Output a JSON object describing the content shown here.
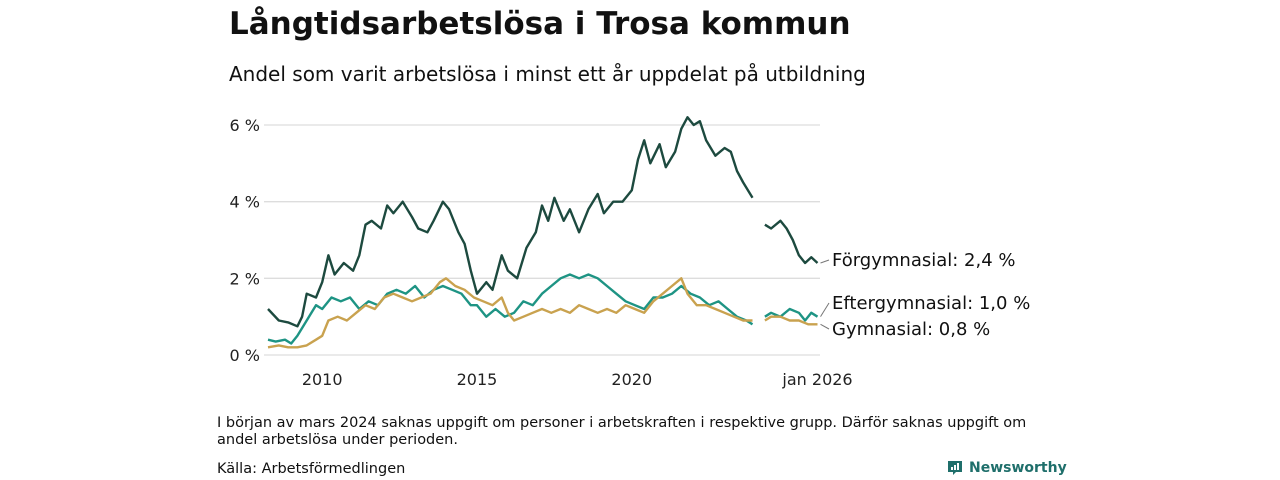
{
  "header": {
    "title": "Långtidsarbetslösa i Trosa kommun",
    "subtitle": "Andel som varit arbetslösa i minst ett år uppdelat på utbildning"
  },
  "footer": {
    "note": "I början av mars 2024 saknas uppgift om personer i arbetskraften i respektive grupp. Därför saknas uppgift om andel arbetslösa under perioden.",
    "source": "Källa: Arbetsförmedlingen",
    "brand": "Newsworthy"
  },
  "colors": {
    "forgymnasial": "#1d4a3f",
    "eftergymnasial": "#1e9484",
    "gymnasial": "#c9a24f",
    "grid": "#dddddd",
    "brand": "#1f6f6b"
  },
  "chart_data": {
    "type": "line",
    "title": "Långtidsarbetslösa i Trosa kommun",
    "subtitle": "Andel som varit arbetslösa i minst ett år uppdelat på utbildning",
    "xlabel": "",
    "ylabel": "",
    "xlim": [
      2008.25,
      2026.08
    ],
    "ylim": [
      0,
      6
    ],
    "yticks": [
      0,
      2,
      4,
      6
    ],
    "ytick_labels": [
      "0 %",
      "2 %",
      "4 %",
      "6 %"
    ],
    "xticks": [
      2010,
      2015,
      2020,
      2026.0
    ],
    "xtick_labels": [
      "2010",
      "2015",
      "2020",
      "jan 2026"
    ],
    "grid": true,
    "gap": [
      2024.0,
      2024.25
    ],
    "series": [
      {
        "name": "Förgymnasial",
        "end_label": "Förgymnasial: 2,4 %",
        "color_key": "forgymnasial",
        "points": [
          [
            2008.25,
            1.2
          ],
          [
            2008.6,
            0.9
          ],
          [
            2008.9,
            0.85
          ],
          [
            2009.2,
            0.75
          ],
          [
            2009.35,
            1.0
          ],
          [
            2009.5,
            1.6
          ],
          [
            2009.8,
            1.5
          ],
          [
            2010.0,
            1.9
          ],
          [
            2010.2,
            2.6
          ],
          [
            2010.4,
            2.1
          ],
          [
            2010.7,
            2.4
          ],
          [
            2011.0,
            2.2
          ],
          [
            2011.2,
            2.6
          ],
          [
            2011.4,
            3.4
          ],
          [
            2011.6,
            3.5
          ],
          [
            2011.9,
            3.3
          ],
          [
            2012.1,
            3.9
          ],
          [
            2012.3,
            3.7
          ],
          [
            2012.6,
            4.0
          ],
          [
            2012.9,
            3.6
          ],
          [
            2013.1,
            3.3
          ],
          [
            2013.4,
            3.2
          ],
          [
            2013.6,
            3.5
          ],
          [
            2013.9,
            4.0
          ],
          [
            2014.1,
            3.8
          ],
          [
            2014.4,
            3.2
          ],
          [
            2014.6,
            2.9
          ],
          [
            2014.8,
            2.2
          ],
          [
            2015.0,
            1.6
          ],
          [
            2015.3,
            1.9
          ],
          [
            2015.5,
            1.7
          ],
          [
            2015.8,
            2.6
          ],
          [
            2016.0,
            2.2
          ],
          [
            2016.3,
            2.0
          ],
          [
            2016.6,
            2.8
          ],
          [
            2016.9,
            3.2
          ],
          [
            2017.1,
            3.9
          ],
          [
            2017.3,
            3.5
          ],
          [
            2017.5,
            4.1
          ],
          [
            2017.8,
            3.5
          ],
          [
            2018.0,
            3.8
          ],
          [
            2018.3,
            3.2
          ],
          [
            2018.6,
            3.8
          ],
          [
            2018.9,
            4.2
          ],
          [
            2019.1,
            3.7
          ],
          [
            2019.4,
            4.0
          ],
          [
            2019.7,
            4.0
          ],
          [
            2020.0,
            4.3
          ],
          [
            2020.2,
            5.1
          ],
          [
            2020.4,
            5.6
          ],
          [
            2020.6,
            5.0
          ],
          [
            2020.9,
            5.5
          ],
          [
            2021.1,
            4.9
          ],
          [
            2021.4,
            5.3
          ],
          [
            2021.6,
            5.9
          ],
          [
            2021.8,
            6.2
          ],
          [
            2022.0,
            6.0
          ],
          [
            2022.2,
            6.1
          ],
          [
            2022.4,
            5.6
          ],
          [
            2022.7,
            5.2
          ],
          [
            2023.0,
            5.4
          ],
          [
            2023.2,
            5.3
          ],
          [
            2023.4,
            4.8
          ],
          [
            2023.6,
            4.5
          ],
          [
            2023.9,
            4.1
          ],
          [
            2024.3,
            3.4
          ],
          [
            2024.5,
            3.3
          ],
          [
            2024.8,
            3.5
          ],
          [
            2025.0,
            3.3
          ],
          [
            2025.2,
            3.0
          ],
          [
            2025.4,
            2.6
          ],
          [
            2025.6,
            2.4
          ],
          [
            2025.8,
            2.55
          ],
          [
            2026.0,
            2.4
          ]
        ]
      },
      {
        "name": "Eftergymnasial",
        "end_label": "Eftergymnasial: 1,0 %",
        "color_key": "eftergymnasial",
        "points": [
          [
            2008.25,
            0.4
          ],
          [
            2008.5,
            0.35
          ],
          [
            2008.8,
            0.4
          ],
          [
            2009.0,
            0.3
          ],
          [
            2009.2,
            0.5
          ],
          [
            2009.5,
            0.9
          ],
          [
            2009.8,
            1.3
          ],
          [
            2010.0,
            1.2
          ],
          [
            2010.3,
            1.5
          ],
          [
            2010.6,
            1.4
          ],
          [
            2010.9,
            1.5
          ],
          [
            2011.2,
            1.2
          ],
          [
            2011.5,
            1.4
          ],
          [
            2011.8,
            1.3
          ],
          [
            2012.1,
            1.6
          ],
          [
            2012.4,
            1.7
          ],
          [
            2012.7,
            1.6
          ],
          [
            2013.0,
            1.8
          ],
          [
            2013.3,
            1.5
          ],
          [
            2013.6,
            1.7
          ],
          [
            2013.9,
            1.8
          ],
          [
            2014.2,
            1.7
          ],
          [
            2014.5,
            1.6
          ],
          [
            2014.8,
            1.3
          ],
          [
            2015.0,
            1.3
          ],
          [
            2015.3,
            1.0
          ],
          [
            2015.6,
            1.2
          ],
          [
            2015.9,
            1.0
          ],
          [
            2016.2,
            1.1
          ],
          [
            2016.5,
            1.4
          ],
          [
            2016.8,
            1.3
          ],
          [
            2017.1,
            1.6
          ],
          [
            2017.4,
            1.8
          ],
          [
            2017.7,
            2.0
          ],
          [
            2018.0,
            2.1
          ],
          [
            2018.3,
            2.0
          ],
          [
            2018.6,
            2.1
          ],
          [
            2018.9,
            2.0
          ],
          [
            2019.2,
            1.8
          ],
          [
            2019.5,
            1.6
          ],
          [
            2019.8,
            1.4
          ],
          [
            2020.1,
            1.3
          ],
          [
            2020.4,
            1.2
          ],
          [
            2020.7,
            1.5
          ],
          [
            2021.0,
            1.5
          ],
          [
            2021.3,
            1.6
          ],
          [
            2021.6,
            1.8
          ],
          [
            2021.9,
            1.6
          ],
          [
            2022.2,
            1.5
          ],
          [
            2022.5,
            1.3
          ],
          [
            2022.8,
            1.4
          ],
          [
            2023.1,
            1.2
          ],
          [
            2023.4,
            1.0
          ],
          [
            2023.7,
            0.9
          ],
          [
            2023.9,
            0.8
          ],
          [
            2024.3,
            1.0
          ],
          [
            2024.5,
            1.1
          ],
          [
            2024.8,
            1.0
          ],
          [
            2025.1,
            1.2
          ],
          [
            2025.4,
            1.1
          ],
          [
            2025.6,
            0.9
          ],
          [
            2025.8,
            1.1
          ],
          [
            2026.0,
            1.0
          ]
        ]
      },
      {
        "name": "Gymnasial",
        "end_label": "Gymnasial: 0,8 %",
        "color_key": "gymnasial",
        "points": [
          [
            2008.25,
            0.2
          ],
          [
            2008.6,
            0.25
          ],
          [
            2008.9,
            0.2
          ],
          [
            2009.2,
            0.2
          ],
          [
            2009.5,
            0.25
          ],
          [
            2009.8,
            0.4
          ],
          [
            2010.0,
            0.5
          ],
          [
            2010.2,
            0.9
          ],
          [
            2010.5,
            1.0
          ],
          [
            2010.8,
            0.9
          ],
          [
            2011.1,
            1.1
          ],
          [
            2011.4,
            1.3
          ],
          [
            2011.7,
            1.2
          ],
          [
            2012.0,
            1.5
          ],
          [
            2012.3,
            1.6
          ],
          [
            2012.6,
            1.5
          ],
          [
            2012.9,
            1.4
          ],
          [
            2013.2,
            1.5
          ],
          [
            2013.5,
            1.6
          ],
          [
            2013.8,
            1.9
          ],
          [
            2014.0,
            2.0
          ],
          [
            2014.3,
            1.8
          ],
          [
            2014.6,
            1.7
          ],
          [
            2014.9,
            1.5
          ],
          [
            2015.2,
            1.4
          ],
          [
            2015.5,
            1.3
          ],
          [
            2015.8,
            1.5
          ],
          [
            2016.0,
            1.1
          ],
          [
            2016.2,
            0.9
          ],
          [
            2016.5,
            1.0
          ],
          [
            2016.8,
            1.1
          ],
          [
            2017.1,
            1.2
          ],
          [
            2017.4,
            1.1
          ],
          [
            2017.7,
            1.2
          ],
          [
            2018.0,
            1.1
          ],
          [
            2018.3,
            1.3
          ],
          [
            2018.6,
            1.2
          ],
          [
            2018.9,
            1.1
          ],
          [
            2019.2,
            1.2
          ],
          [
            2019.5,
            1.1
          ],
          [
            2019.8,
            1.3
          ],
          [
            2020.1,
            1.2
          ],
          [
            2020.4,
            1.1
          ],
          [
            2020.7,
            1.4
          ],
          [
            2021.0,
            1.6
          ],
          [
            2021.3,
            1.8
          ],
          [
            2021.6,
            2.0
          ],
          [
            2021.8,
            1.6
          ],
          [
            2022.1,
            1.3
          ],
          [
            2022.4,
            1.3
          ],
          [
            2022.7,
            1.2
          ],
          [
            2023.0,
            1.1
          ],
          [
            2023.3,
            1.0
          ],
          [
            2023.6,
            0.9
          ],
          [
            2023.9,
            0.9
          ],
          [
            2024.3,
            0.9
          ],
          [
            2024.5,
            1.0
          ],
          [
            2024.8,
            1.0
          ],
          [
            2025.1,
            0.9
          ],
          [
            2025.4,
            0.9
          ],
          [
            2025.7,
            0.8
          ],
          [
            2026.0,
            0.8
          ]
        ]
      }
    ]
  }
}
